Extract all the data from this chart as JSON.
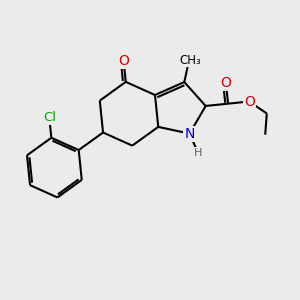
{
  "background_color": "#ebebeb",
  "bond_color": "#000000",
  "bond_lw": 1.5,
  "atom_colors": {
    "N": "#0000dd",
    "O": "#dd0000",
    "Cl": "#00aa00",
    "C": "#000000",
    "H": "#606060"
  },
  "figsize": [
    3.0,
    3.0
  ],
  "dpi": 100,
  "xlim": [
    -1,
    11
  ],
  "ylim": [
    -1,
    11
  ]
}
